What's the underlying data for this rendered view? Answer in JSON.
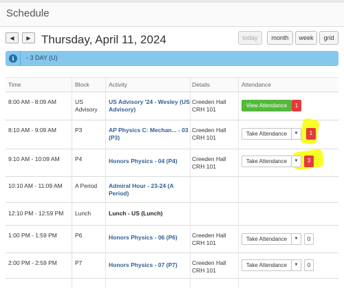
{
  "header": {
    "title": "Schedule"
  },
  "nav": {
    "prev_icon": "◀",
    "next_icon": "▶"
  },
  "date": "Thursday, April 11, 2024",
  "views": {
    "today": "today",
    "month": "month",
    "week": "week",
    "grid": "grid"
  },
  "banner": {
    "icon": "i",
    "text": "- 3 DAY (U)"
  },
  "columns": {
    "time": "Time",
    "block": "Block",
    "activity": "Activity",
    "details": "Details",
    "attendance": "Attendance"
  },
  "rows": [
    {
      "time": "8:00 AM - 8:09 AM",
      "block": [
        "US",
        "Advisory"
      ],
      "activity": [
        "US Advisory '24 - Wesley (US",
        "Advisory)"
      ],
      "details": [
        "Creeden Hall",
        "CRH 101"
      ],
      "attendance": "View Attendance",
      "count": "1"
    },
    {
      "time": "8:10 AM - 9:09 AM",
      "block": [
        "P3"
      ],
      "activity": [
        "AP Physics C: Mechan... - 03",
        "(P3)"
      ],
      "details": [
        "Creeden Hall",
        "CRH 101"
      ],
      "attendance": "Take Attendance",
      "count": "1"
    },
    {
      "time": "9:10 AM - 10:09 AM",
      "block": [
        "P4"
      ],
      "activity": [
        "Honors Physics - 04 (P4)"
      ],
      "details": [
        "Creeden Hall",
        "CRH 101"
      ],
      "attendance": "Take Attendance",
      "count": "3"
    },
    {
      "time": "10:10 AM - 11:09 AM",
      "block": [
        "A Period"
      ],
      "activity": [
        "Admiral Hour - 23-24 (A",
        "Period)"
      ],
      "details": [],
      "attendance": "",
      "count": ""
    },
    {
      "time": "12:10 PM - 12:59 PM",
      "block": [
        "Lunch"
      ],
      "activity": [
        "Lunch - US (Lunch)"
      ],
      "details": [],
      "attendance": "",
      "count": ""
    },
    {
      "time": "1:00 PM - 1:59 PM",
      "block": [
        "P6"
      ],
      "activity": [
        "Honors Physics - 06 (P6)"
      ],
      "details": [
        "Creeden Hall",
        "CRH 101"
      ],
      "attendance": "Take Attendance",
      "count": "0"
    },
    {
      "time": "2:00 PM - 2:59 PM",
      "block": [
        "P7"
      ],
      "activity": [
        "Honors Physics - 07 (P7)"
      ],
      "details": [
        "Creeden Hall",
        "CRH 101"
      ],
      "attendance": "Take Attendance",
      "count": "0"
    }
  ],
  "caret_icon": "▼",
  "colors": {
    "view_button": "#55b83c",
    "badge": "#e23b3b",
    "banner": "#86c7ee",
    "link": "#2f5e98",
    "highlight": "#f6ff00"
  }
}
